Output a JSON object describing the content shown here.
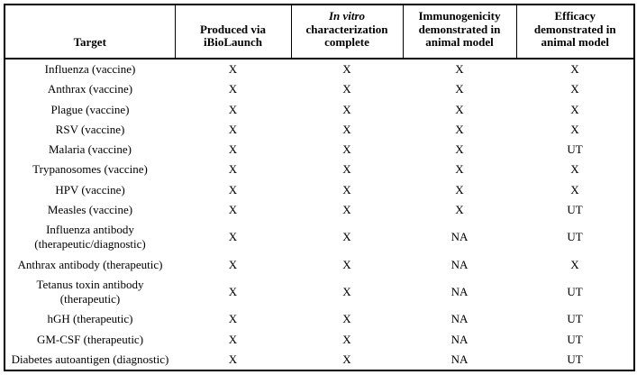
{
  "colors": {
    "border": "#000000",
    "text": "#000000",
    "background": "#ffffff"
  },
  "table": {
    "header": {
      "target": "Target",
      "produced": "Produced via\niBioLaunch",
      "invitro_italic": "In vitro",
      "invitro_rest": "characterization\ncomplete",
      "immunogenicity": "Immunogenicity\ndemonstrated in\nanimal model",
      "efficacy": "Efficacy\ndemonstrated in\nanimal model"
    },
    "rows": [
      {
        "target": "Influenza (vaccine)",
        "values": [
          "X",
          "X",
          "X",
          "X"
        ]
      },
      {
        "target": "Anthrax (vaccine)",
        "values": [
          "X",
          "X",
          "X",
          "X"
        ]
      },
      {
        "target": "Plague (vaccine)",
        "values": [
          "X",
          "X",
          "X",
          "X"
        ]
      },
      {
        "target": "RSV (vaccine)",
        "values": [
          "X",
          "X",
          "X",
          "X"
        ]
      },
      {
        "target": "Malaria (vaccine)",
        "values": [
          "X",
          "X",
          "X",
          "UT"
        ]
      },
      {
        "target": "Trypanosomes (vaccine)",
        "values": [
          "X",
          "X",
          "X",
          "X"
        ]
      },
      {
        "target": "HPV (vaccine)",
        "values": [
          "X",
          "X",
          "X",
          "X"
        ]
      },
      {
        "target": "Measles (vaccine)",
        "values": [
          "X",
          "X",
          "X",
          "UT"
        ]
      },
      {
        "target": "Influenza antibody\n(therapeutic/diagnostic)",
        "values": [
          "X",
          "X",
          "NA",
          "UT"
        ]
      },
      {
        "target": "Anthrax antibody (therapeutic)",
        "values": [
          "X",
          "X",
          "NA",
          "X"
        ]
      },
      {
        "target": "Tetanus toxin antibody\n(therapeutic)",
        "values": [
          "X",
          "X",
          "NA",
          "UT"
        ]
      },
      {
        "target": "hGH (therapeutic)",
        "values": [
          "X",
          "X",
          "NA",
          "UT"
        ]
      },
      {
        "target": "GM-CSF (therapeutic)",
        "values": [
          "X",
          "X",
          "NA",
          "UT"
        ]
      },
      {
        "target": "Diabetes autoantigen (diagnostic)",
        "values": [
          "X",
          "X",
          "NA",
          "UT"
        ]
      }
    ]
  }
}
